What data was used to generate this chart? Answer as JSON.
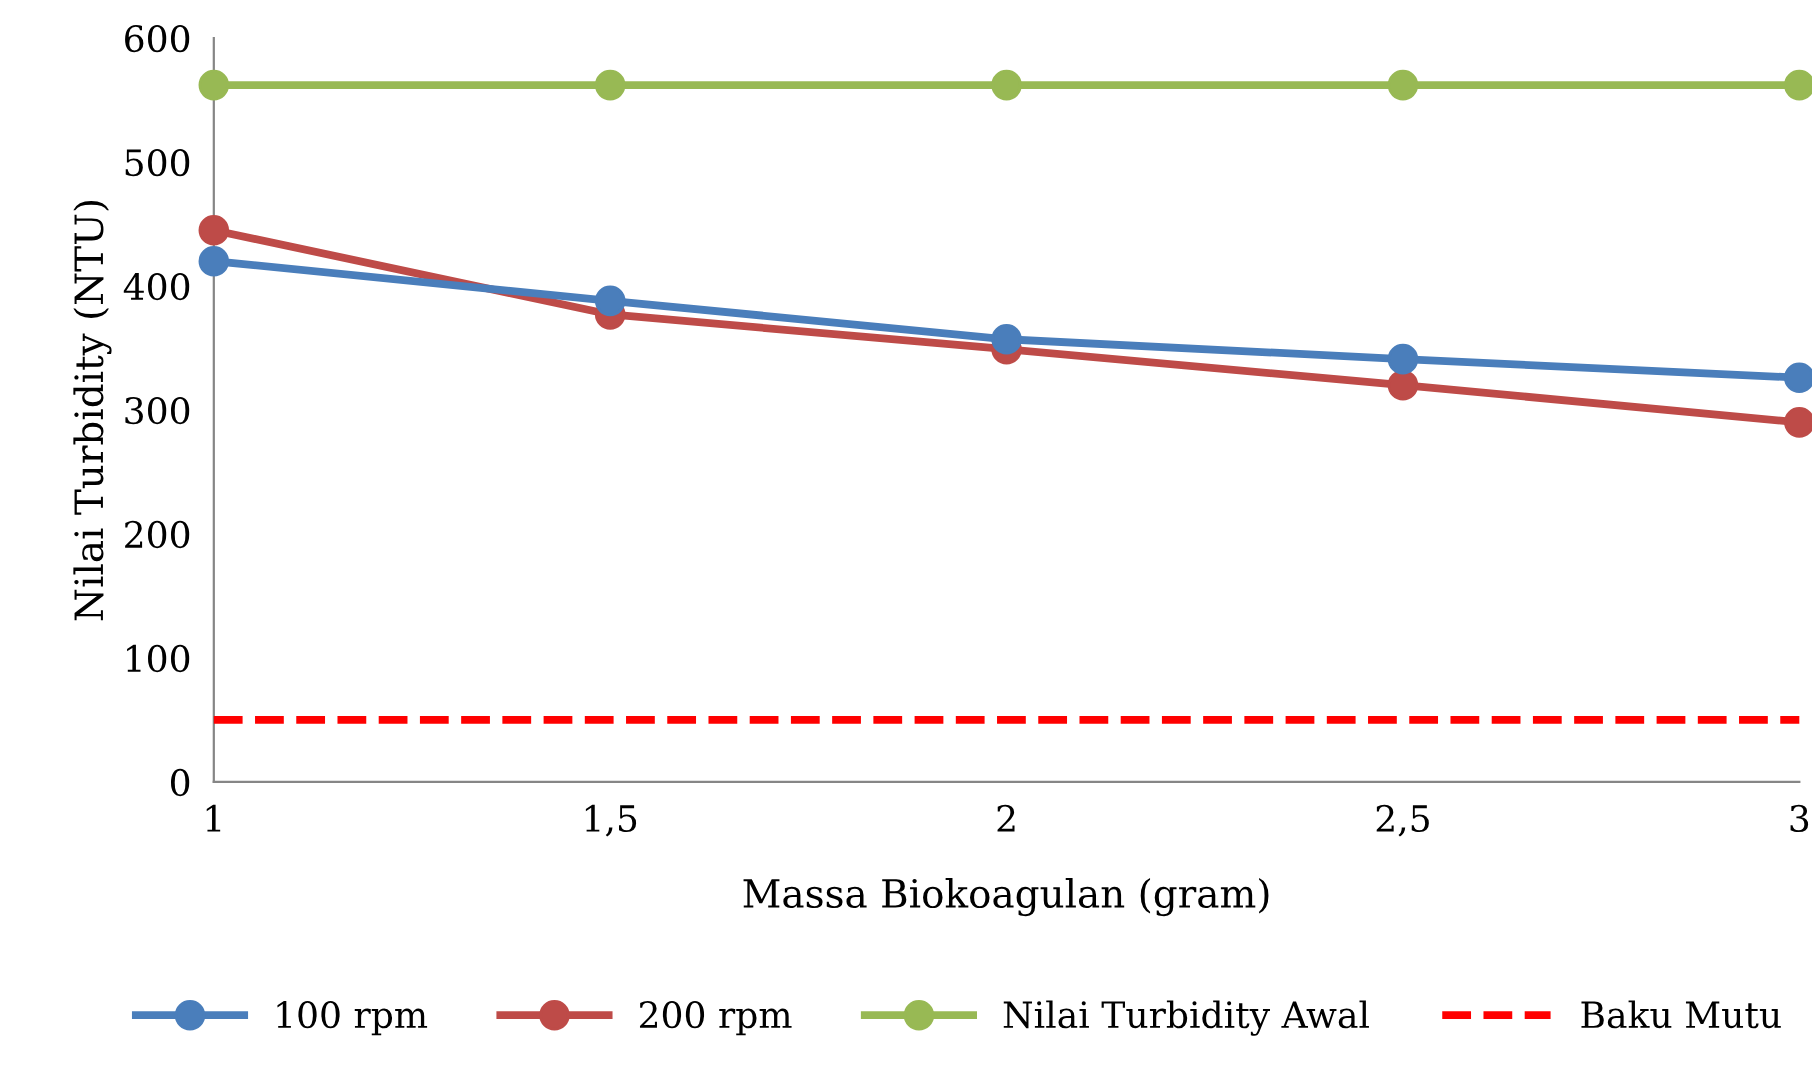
{
  "chart_data": {
    "type": "line",
    "xlabel": "Massa Biokoagulan (gram)",
    "ylabel": "Nilai Turbidity (NTU)",
    "x": [
      1,
      1.5,
      2,
      2.5,
      3
    ],
    "xlim": [
      1,
      3
    ],
    "xticks": [
      1,
      {
        "value": 1.5,
        "label": "1,5"
      },
      2,
      {
        "value": 2.5,
        "label": "2,5"
      },
      3
    ],
    "ylim": [
      0,
      600
    ],
    "yticks": [
      0,
      100,
      200,
      300,
      400,
      500,
      600
    ],
    "grid": false,
    "legend": "bottom",
    "marker": "circle",
    "line_style": "solid",
    "series": [
      {
        "name": "100 rpm",
        "color": "#4a7ebb",
        "values": [
          420,
          388,
          357,
          341,
          326
        ]
      },
      {
        "name": "200 rpm",
        "color": "#be4b48",
        "values": [
          445,
          377,
          349,
          320,
          290
        ]
      },
      {
        "name": "Nilai Turbidity Awal",
        "color": "#98b954",
        "values": [
          562,
          562,
          562,
          562,
          562
        ]
      },
      {
        "name": "Baku Mutu",
        "color": "#ff0000",
        "values": [
          50,
          50,
          50,
          50,
          50
        ],
        "marker": "none",
        "line_style": "dashed"
      }
    ]
  }
}
